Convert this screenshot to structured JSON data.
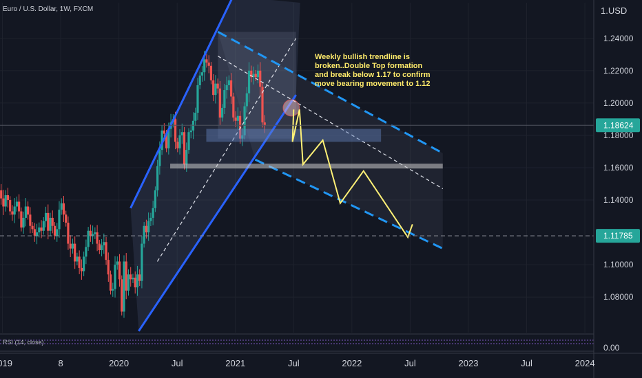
{
  "header": {
    "symbol_title": "Euro / U.S. Dollar, 1W, FXCM",
    "currency": "1.USD"
  },
  "indicator": {
    "rsi_label": "RSI (14, close)"
  },
  "annotation": {
    "lines": [
      "Weekly bullish trendline is",
      "broken..Double Top formation",
      "and break below 1.17 to confirm",
      "move bearing movement to 1.12"
    ]
  },
  "colors": {
    "background": "#131722",
    "up_candle": "#26a69a",
    "down_candle": "#ef5350",
    "channel_line": "#2962ff",
    "dashed_channel": "#2196f3",
    "projection": "#fff176",
    "price_badge_current": "#26a69a",
    "price_badge_target": "#26a69a",
    "rsi_line": "#7e57c2"
  },
  "chart_data": {
    "type": "candlestick",
    "title": "Euro / U.S. Dollar, 1W, FXCM",
    "y_ticks": [
      "1.24000",
      "1.22000",
      "1.20000",
      "1.18000",
      "1.16000",
      "1.14000",
      "1.10000",
      "1.08000"
    ],
    "y_range": [
      1.058,
      1.262
    ],
    "price_badges": [
      {
        "label": "1.18624",
        "value": 1.18624
      },
      {
        "label": "1.11785",
        "value": 1.11785
      }
    ],
    "rsi_tick": "0.00",
    "x_ticks": [
      {
        "label": "2019",
        "t": 2019.0
      },
      {
        "label": "8",
        "t": 2019.5
      },
      {
        "label": "2020",
        "t": 2020.0
      },
      {
        "label": "Jul",
        "t": 2020.5
      },
      {
        "label": "2021",
        "t": 2021.0
      },
      {
        "label": "Jul",
        "t": 2021.5
      },
      {
        "label": "2022",
        "t": 2022.0
      },
      {
        "label": "Jul",
        "t": 2022.5
      },
      {
        "label": "2023",
        "t": 2023.0
      },
      {
        "label": "Jul",
        "t": 2023.5
      },
      {
        "label": "2024",
        "t": 2024.0
      }
    ],
    "x_range": [
      2018.92,
      2024.1
    ],
    "last_price_level": 1.18624,
    "target_level": 1.11785,
    "support_levels": [
      1.161,
      1.178
    ],
    "projection_path": [
      [
        2021.5,
        1.196
      ],
      [
        2021.49,
        1.176
      ],
      [
        2021.55,
        1.196
      ],
      [
        2021.58,
        1.162
      ],
      [
        2021.75,
        1.177
      ],
      [
        2021.9,
        1.138
      ],
      [
        2022.1,
        1.158
      ],
      [
        2022.48,
        1.117
      ],
      [
        2022.52,
        1.125
      ]
    ],
    "channels": [
      {
        "name": "rising",
        "points": [
          [
            2020.1,
            1.135
          ],
          [
            2020.98,
            1.266
          ],
          [
            2020.17,
            1.059
          ],
          [
            2021.52,
            1.205
          ]
        ]
      },
      {
        "name": "falling",
        "points": [
          [
            2020.85,
            1.244
          ],
          [
            2022.78,
            1.169
          ],
          [
            2021.17,
            1.165
          ],
          [
            2022.78,
            1.11
          ]
        ]
      }
    ],
    "weekly_closes": [
      1.146,
      1.141,
      1.136,
      1.143,
      1.14,
      1.133,
      1.131,
      1.136,
      1.139,
      1.133,
      1.123,
      1.129,
      1.136,
      1.131,
      1.124,
      1.122,
      1.118,
      1.12,
      1.123,
      1.121,
      1.127,
      1.132,
      1.121,
      1.129,
      1.124,
      1.118,
      1.122,
      1.134,
      1.138,
      1.131,
      1.126,
      1.113,
      1.11,
      1.113,
      1.102,
      1.105,
      1.098,
      1.096,
      1.105,
      1.111,
      1.121,
      1.118,
      1.119,
      1.12,
      1.113,
      1.109,
      1.112,
      1.114,
      1.103,
      1.094,
      1.084,
      1.085,
      1.1,
      1.102,
      1.091,
      1.071,
      1.102,
      1.084,
      1.094,
      1.091,
      1.092,
      1.086,
      1.094,
      1.09,
      1.113,
      1.124,
      1.12,
      1.127,
      1.129,
      1.135,
      1.146,
      1.161,
      1.171,
      1.183,
      1.181,
      1.172,
      1.184,
      1.188,
      1.19,
      1.176,
      1.172,
      1.18,
      1.182,
      1.162,
      1.171,
      1.182,
      1.183,
      1.189,
      1.194,
      1.211,
      1.217,
      1.219,
      1.227,
      1.225,
      1.223,
      1.214,
      1.205,
      1.212,
      1.209,
      1.191,
      1.197,
      1.208,
      1.211,
      1.214,
      1.204,
      1.191,
      1.189,
      1.192,
      1.178,
      1.18,
      1.198,
      1.206,
      1.22,
      1.216,
      1.218,
      1.216,
      1.22,
      1.21,
      1.188,
      1.186
    ],
    "first_week": 2018.97,
    "week": 0.01917
  }
}
